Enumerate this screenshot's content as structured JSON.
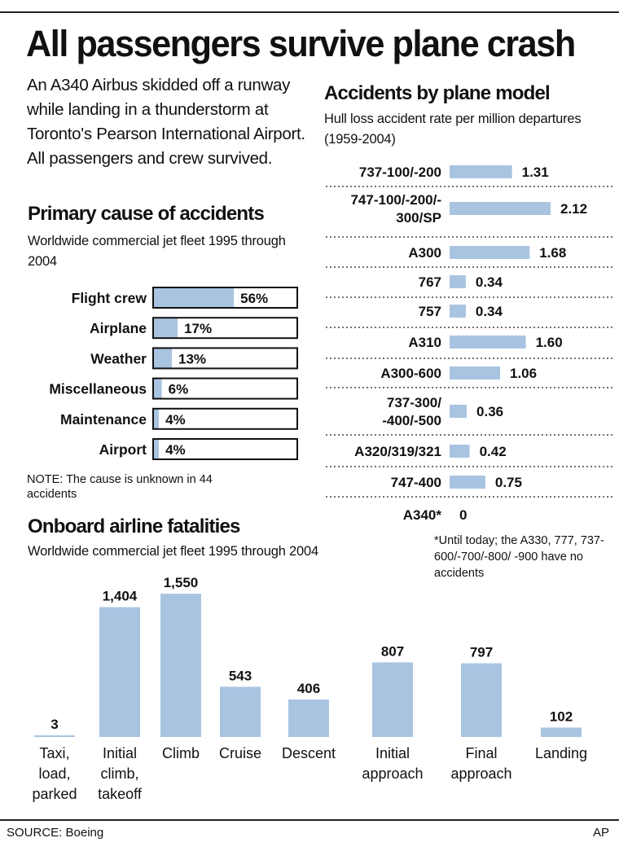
{
  "headline": "All passengers survive plane crash",
  "intro": "An A340 Airbus skidded off a runway while landing in a thunderstorm at Toronto's Pearson International Airport. All passengers and crew survived.",
  "colors": {
    "bar": "#a9c4e1",
    "text": "#111111",
    "rule": "#222222"
  },
  "cause": {
    "title": "Primary cause of accidents",
    "subtitle": "Worldwide commercial jet fleet 1995 through 2004",
    "note": "NOTE: The cause is unknown in 44 accidents"
  },
  "model": {
    "title": "Accidents by plane model",
    "subtitle": "Hull loss accident rate per million departures (1959-2004)",
    "footnote": "*Until today; the A330, 777, 737-600/-700/-800/ -900 have no accidents"
  },
  "fatal": {
    "title": "Onboard airline fatalities",
    "subtitle": "Worldwide commercial jet fleet 1995 through 2004"
  },
  "source": "SOURCE: Boeing",
  "credit": "AP",
  "chart_data": [
    {
      "id": "cause",
      "type": "bar",
      "orientation": "horizontal",
      "categories": [
        "Flight crew",
        "Airplane",
        "Weather",
        "Miscellaneous",
        "Maintenance",
        "Airport"
      ],
      "values": [
        56,
        17,
        13,
        6,
        4,
        4
      ],
      "labels": [
        "56%",
        "17%",
        "13%",
        "6%",
        "4%",
        "4%"
      ],
      "xlim": [
        0,
        100
      ],
      "unit": "%"
    },
    {
      "id": "model",
      "type": "bar",
      "orientation": "horizontal",
      "categories": [
        [
          "737-100/-200"
        ],
        [
          "747-100/-200/-",
          "300/SP"
        ],
        [
          "A300"
        ],
        [
          "767"
        ],
        [
          "757"
        ],
        [
          "A310"
        ],
        [
          "A300-600"
        ],
        [
          "737-300/",
          "-400/-500"
        ],
        [
          "A320/319/321"
        ],
        [
          "747-400"
        ],
        [
          "A340*"
        ]
      ],
      "values": [
        1.31,
        2.12,
        1.68,
        0.34,
        0.34,
        1.6,
        1.06,
        0.36,
        0.42,
        0.75,
        0
      ],
      "labels": [
        "1.31",
        "2.12",
        "1.68",
        "0.34",
        "0.34",
        "1.60",
        "1.06",
        "0.36",
        "0.42",
        "0.75",
        "0"
      ],
      "xlim": [
        0,
        2.12
      ]
    },
    {
      "id": "fatal",
      "type": "bar",
      "orientation": "vertical",
      "categories": [
        [
          "Taxi,",
          "load,",
          "parked"
        ],
        [
          "Initial",
          "climb,",
          "takeoff"
        ],
        [
          "Climb"
        ],
        [
          "Cruise"
        ],
        [
          "Descent"
        ],
        [
          "Initial",
          "approach"
        ],
        [
          "Final",
          "approach"
        ],
        [
          "Landing"
        ]
      ],
      "values": [
        3,
        1404,
        1550,
        543,
        406,
        807,
        797,
        102
      ],
      "labels": [
        "3",
        "1,404",
        "1,550",
        "543",
        "406",
        "807",
        "797",
        "102"
      ],
      "ylim": [
        0,
        1550
      ]
    }
  ]
}
